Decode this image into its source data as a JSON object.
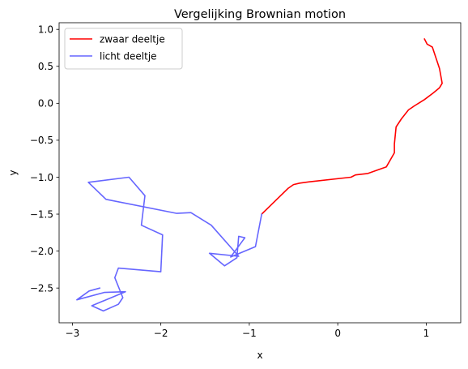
{
  "chart_data": {
    "type": "line",
    "title": "Vergelijking Brownian motion",
    "xlabel": "x",
    "ylabel": "y",
    "xlim": [
      -3.15,
      1.39
    ],
    "ylim": [
      -2.97,
      1.09
    ],
    "xticks": [
      -3,
      -2,
      -1,
      0,
      1
    ],
    "yticks": [
      1.0,
      0.5,
      0.0,
      -0.5,
      -1.0,
      -1.5,
      -2.0,
      -2.5
    ],
    "xtick_labels": [
      "−3",
      "−2",
      "−1",
      "0",
      "1"
    ],
    "ytick_labels": [
      "1.0",
      "0.5",
      "0.0",
      "−0.5",
      "−1.0",
      "−1.5",
      "−2.0",
      "−2.5"
    ],
    "grid": false,
    "legend_position": "top-left",
    "series": [
      {
        "name": "zwaar deeltje",
        "color": "#ff0000",
        "x": [
          0.98,
          1.01,
          1.07,
          1.15,
          1.18,
          1.15,
          1.08,
          0.98,
          0.86,
          0.8,
          0.72,
          0.66,
          0.64,
          0.64,
          0.55,
          0.34,
          0.2,
          0.15,
          -0.3,
          -0.43,
          -0.5,
          -0.56,
          -0.86
        ],
        "y": [
          0.87,
          0.8,
          0.76,
          0.47,
          0.27,
          0.21,
          0.14,
          0.05,
          -0.04,
          -0.09,
          -0.21,
          -0.32,
          -0.55,
          -0.67,
          -0.86,
          -0.95,
          -0.97,
          -1.0,
          -1.06,
          -1.08,
          -1.1,
          -1.15,
          -1.5
        ]
      },
      {
        "name": "licht deeltje",
        "color": "#6666ff",
        "x": [
          -0.86,
          -0.93,
          -1.21,
          -1.05,
          -1.12,
          -1.14,
          -1.28,
          -1.45,
          -1.12,
          -1.43,
          -1.66,
          -1.82,
          -2.62,
          -2.82,
          -2.36,
          -2.18,
          -2.22,
          -1.98,
          -2.0,
          -2.48,
          -2.52,
          -2.43,
          -2.48,
          -2.65,
          -2.78,
          -2.4,
          -2.64,
          -2.95,
          -2.81,
          -2.69
        ],
        "y": [
          -1.5,
          -1.94,
          -2.08,
          -1.82,
          -1.8,
          -2.09,
          -2.2,
          -2.03,
          -2.07,
          -1.65,
          -1.48,
          -1.49,
          -1.3,
          -1.07,
          -1.0,
          -1.25,
          -1.65,
          -1.78,
          -2.28,
          -2.23,
          -2.36,
          -2.63,
          -2.72,
          -2.81,
          -2.74,
          -2.55,
          -2.56,
          -2.66,
          -2.54,
          -2.5
        ]
      }
    ]
  }
}
